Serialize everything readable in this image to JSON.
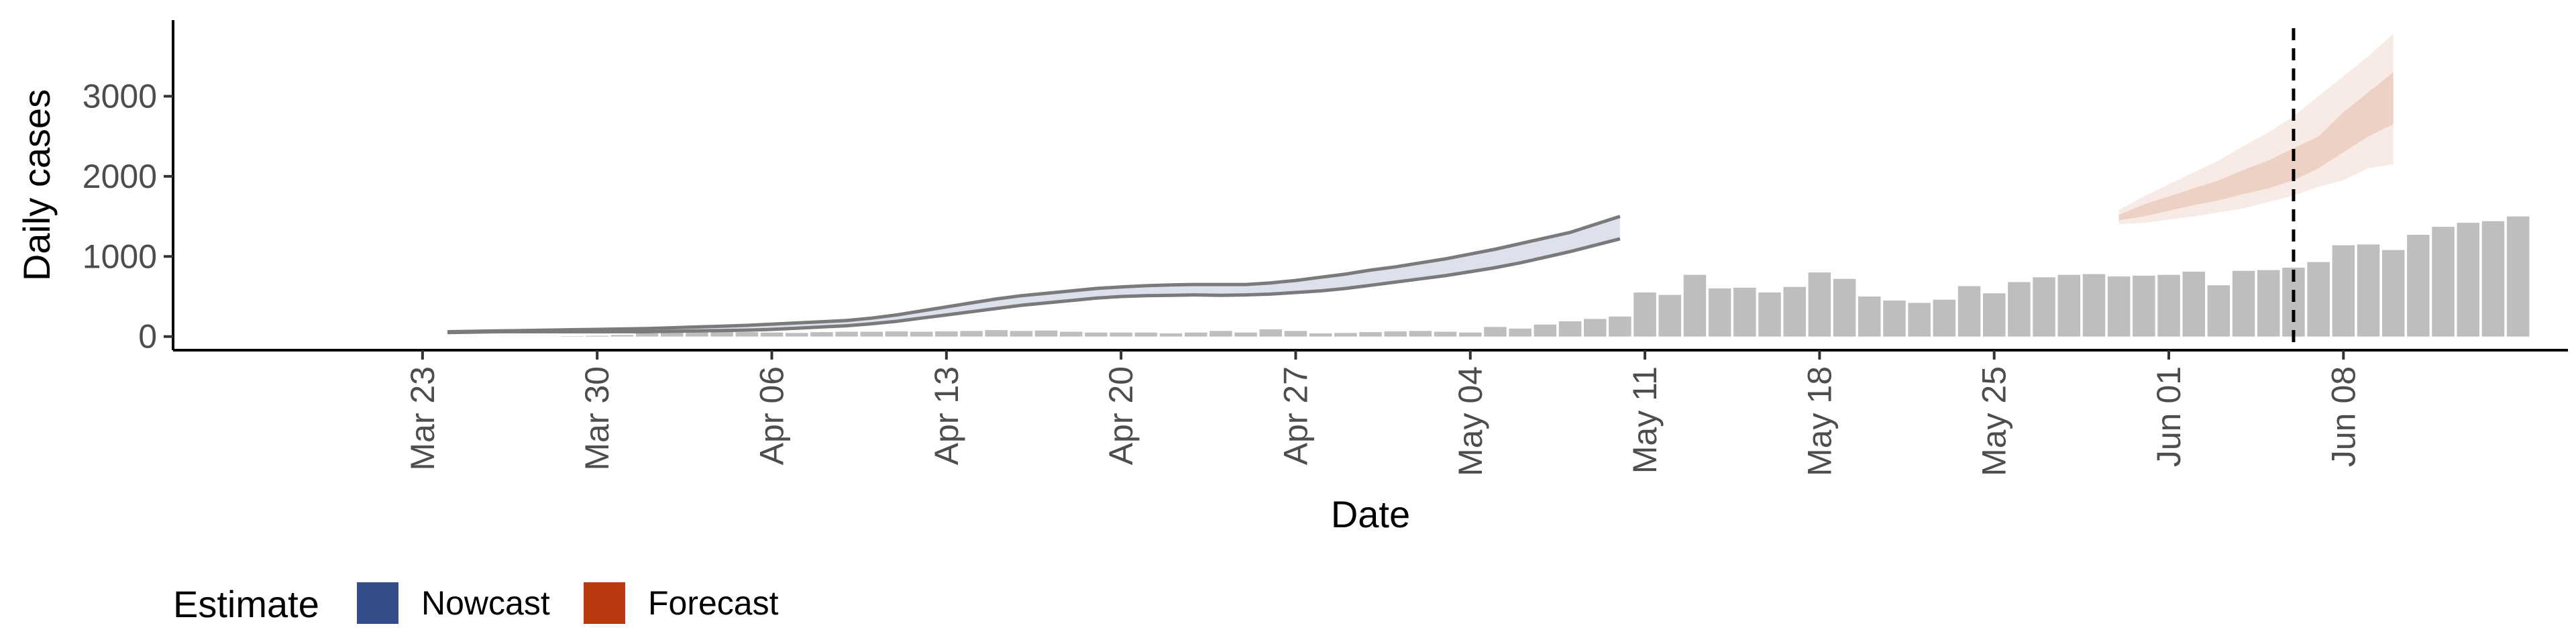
{
  "chart_data": {
    "type": "bar",
    "title": "",
    "xlabel": "Date",
    "ylabel": "Daily cases",
    "ylim": [
      -170,
      3950
    ],
    "yticks": [
      0,
      1000,
      2000,
      3000
    ],
    "xlim": [
      "2020-03-13",
      "2020-06-17"
    ],
    "xticks": [
      {
        "date": "2020-03-23",
        "label": "Mar 23"
      },
      {
        "date": "2020-03-30",
        "label": "Mar 30"
      },
      {
        "date": "2020-04-06",
        "label": "Apr 06"
      },
      {
        "date": "2020-04-13",
        "label": "Apr 13"
      },
      {
        "date": "2020-04-20",
        "label": "Apr 20"
      },
      {
        "date": "2020-04-27",
        "label": "Apr 27"
      },
      {
        "date": "2020-05-04",
        "label": "May 04"
      },
      {
        "date": "2020-05-11",
        "label": "May 11"
      },
      {
        "date": "2020-05-18",
        "label": "May 18"
      },
      {
        "date": "2020-05-25",
        "label": "May 25"
      },
      {
        "date": "2020-06-01",
        "label": "Jun 01"
      },
      {
        "date": "2020-06-08",
        "label": "Jun 08"
      }
    ],
    "grid": false,
    "bars": {
      "start_date": "2020-03-29",
      "color": "#bebebe",
      "values": [
        5,
        10,
        20,
        40,
        80,
        60,
        70,
        55,
        50,
        45,
        55,
        60,
        60,
        65,
        60,
        65,
        70,
        80,
        70,
        75,
        60,
        50,
        50,
        50,
        40,
        50,
        70,
        50,
        90,
        70,
        40,
        45,
        55,
        65,
        70,
        60,
        50,
        120,
        100,
        150,
        190,
        220,
        250,
        550,
        520,
        770,
        600,
        610,
        550,
        620,
        800,
        720,
        500,
        450,
        420,
        460,
        630,
        540,
        680,
        740,
        770,
        780,
        750,
        760,
        770,
        810,
        640,
        820,
        830,
        860,
        930,
        1140,
        1150,
        1080,
        1270,
        1370,
        1420,
        1440,
        1500
      ]
    },
    "nowcast": {
      "start_date": "2020-03-24",
      "color": "#3d5a99",
      "outer_upper": [
        60,
        65,
        70,
        75,
        80,
        85,
        90,
        95,
        100,
        110,
        120,
        130,
        140,
        155,
        170,
        185,
        200,
        230,
        270,
        320,
        370,
        420,
        470,
        510,
        540,
        570,
        600,
        620,
        635,
        645,
        650,
        650,
        650,
        670,
        700,
        740,
        780,
        830,
        870,
        920,
        970,
        1030,
        1090,
        1160,
        1230,
        1300,
        1400,
        1500
      ],
      "outer_lower": [
        50,
        55,
        60,
        60,
        60,
        60,
        60,
        60,
        60,
        65,
        70,
        75,
        80,
        90,
        105,
        120,
        135,
        160,
        190,
        230,
        270,
        310,
        350,
        390,
        420,
        450,
        480,
        500,
        510,
        515,
        520,
        515,
        520,
        530,
        550,
        570,
        600,
        640,
        680,
        720,
        760,
        810,
        860,
        920,
        990,
        1060,
        1140,
        1220
      ]
    },
    "forecast": {
      "start_date": "2020-05-30",
      "color": "#b83a0e",
      "inner_upper": [
        1520,
        1650,
        1750,
        1850,
        1950,
        2080,
        2200,
        2350,
        2500,
        2800,
        3050,
        3300
      ],
      "inner_lower": [
        1450,
        1500,
        1570,
        1640,
        1700,
        1780,
        1850,
        1950,
        2100,
        2300,
        2500,
        2650
      ],
      "outer_upper": [
        1580,
        1750,
        1900,
        2050,
        2200,
        2380,
        2550,
        2750,
        3000,
        3250,
        3500,
        3780
      ],
      "outer_lower": [
        1400,
        1420,
        1460,
        1500,
        1550,
        1600,
        1680,
        1760,
        1870,
        1950,
        2100,
        2150
      ]
    },
    "reference_line": {
      "date": "2020-06-06",
      "style": "dashed"
    },
    "legend": {
      "title": "Estimate",
      "placement": "bottom-left",
      "items": [
        {
          "label": "Nowcast",
          "color": "#344f87"
        },
        {
          "label": "Forecast",
          "color": "#b83a0e"
        }
      ]
    }
  }
}
